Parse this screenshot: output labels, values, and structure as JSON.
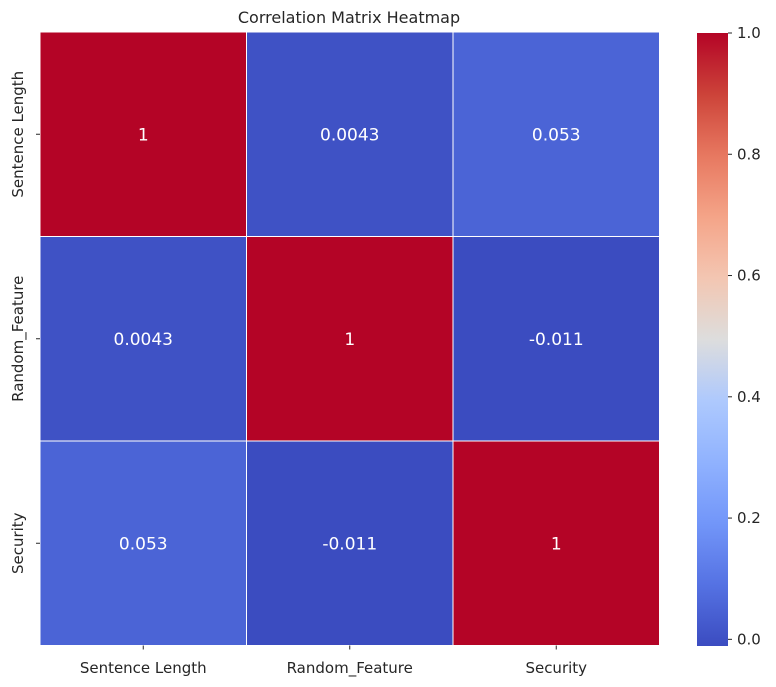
{
  "chart_data": {
    "type": "heatmap",
    "title": "Correlation Matrix Heatmap",
    "x_labels": [
      "Sentence Length",
      "Random_Feature",
      "Security"
    ],
    "y_labels": [
      "Sentence Length",
      "Random_Feature",
      "Security"
    ],
    "values": [
      [
        1,
        0.0043,
        0.053
      ],
      [
        0.0043,
        1,
        -0.011
      ],
      [
        0.053,
        -0.011,
        1
      ]
    ],
    "annotations": [
      [
        "1",
        "0.0043",
        "0.053"
      ],
      [
        "0.0043",
        "1",
        "-0.011"
      ],
      [
        "0.053",
        "-0.011",
        "1"
      ]
    ],
    "colormap": "coolwarm",
    "colorbar": {
      "range": [
        -0.011,
        1
      ],
      "ticks": [
        0.0,
        0.2,
        0.4,
        0.6,
        0.8,
        1.0
      ],
      "tick_labels": [
        "0.0",
        "0.2",
        "0.4",
        "0.6",
        "0.8",
        "1.0"
      ]
    },
    "colors": {
      "low": "#3b4cc0",
      "high": "#b40426",
      "cell_border": "#ffffff",
      "annotation_text": "#ffffff"
    }
  }
}
